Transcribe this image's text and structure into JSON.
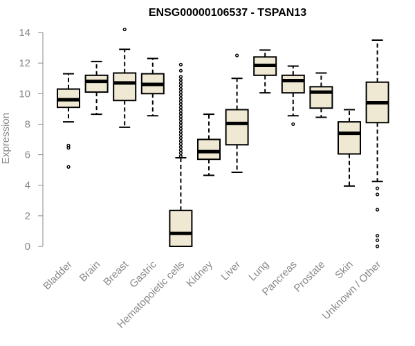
{
  "chart_data": {
    "type": "boxplot",
    "title": "ENSG00000106537 - TSPAN13",
    "ylabel": "Expression",
    "xlabel": "",
    "ylim": [
      0,
      14
    ],
    "yticks": [
      0,
      2,
      4,
      6,
      8,
      10,
      12,
      14
    ],
    "grid": false,
    "box_fill": "#efe8d2",
    "box_stroke": "#000000",
    "median_color": "#000000",
    "axis_color": "#888888",
    "categories": [
      "Bladder",
      "Brain",
      "Breast",
      "Gastric",
      "Hematopoietic cells",
      "Kidney",
      "Liver",
      "Lung",
      "Pancreas",
      "Prostate",
      "Skin",
      "Unknown / Other"
    ],
    "boxes": [
      {
        "category": "Bladder",
        "whisker_low": 8.15,
        "q1": 9.1,
        "median": 9.6,
        "q3": 10.3,
        "whisker_high": 11.3,
        "outliers": [
          6.6,
          6.45,
          5.2
        ]
      },
      {
        "category": "Brain",
        "whisker_low": 8.65,
        "q1": 10.1,
        "median": 10.8,
        "q3": 11.2,
        "whisker_high": 12.1,
        "outliers": []
      },
      {
        "category": "Breast",
        "whisker_low": 7.8,
        "q1": 9.55,
        "median": 10.7,
        "q3": 11.35,
        "whisker_high": 12.9,
        "outliers": [
          14.2
        ]
      },
      {
        "category": "Gastric",
        "whisker_low": 8.55,
        "q1": 10.0,
        "median": 10.6,
        "q3": 11.3,
        "whisker_high": 12.3,
        "outliers": []
      },
      {
        "category": "Hematopoietic cells",
        "whisker_low": 0.0,
        "q1": 0.0,
        "median": 0.85,
        "q3": 2.35,
        "whisker_high": 5.8,
        "outliers": [
          5.9,
          6.1,
          6.3,
          6.5,
          6.7,
          6.9,
          7.1,
          7.3,
          7.5,
          7.7,
          7.9,
          8.1,
          8.3,
          8.5,
          8.7,
          8.9,
          9.1,
          9.3,
          9.5,
          9.7,
          9.9,
          10.1,
          10.3,
          10.5,
          10.7,
          10.9,
          11.1,
          11.5,
          11.9
        ]
      },
      {
        "category": "Kidney",
        "whisker_low": 4.65,
        "q1": 5.7,
        "median": 6.2,
        "q3": 7.0,
        "whisker_high": 8.65,
        "outliers": []
      },
      {
        "category": "Liver",
        "whisker_low": 4.85,
        "q1": 6.65,
        "median": 8.05,
        "q3": 8.95,
        "whisker_high": 11.0,
        "outliers": [
          12.5
        ]
      },
      {
        "category": "Lung",
        "whisker_low": 10.05,
        "q1": 11.2,
        "median": 11.85,
        "q3": 12.4,
        "whisker_high": 12.85,
        "outliers": []
      },
      {
        "category": "Pancreas",
        "whisker_low": 8.55,
        "q1": 10.05,
        "median": 10.85,
        "q3": 11.2,
        "whisker_high": 11.8,
        "outliers": [
          8.0
        ]
      },
      {
        "category": "Prostate",
        "whisker_low": 8.45,
        "q1": 9.05,
        "median": 10.1,
        "q3": 10.45,
        "whisker_high": 11.35,
        "outliers": []
      },
      {
        "category": "Skin",
        "whisker_low": 3.95,
        "q1": 6.05,
        "median": 7.4,
        "q3": 8.15,
        "whisker_high": 8.95,
        "outliers": []
      },
      {
        "category": "Unknown / Other",
        "whisker_low": 4.25,
        "q1": 8.1,
        "median": 9.4,
        "q3": 10.75,
        "whisker_high": 13.5,
        "outliers": [
          3.8,
          3.4,
          2.4,
          0.7,
          0.4,
          0.0
        ]
      }
    ]
  }
}
